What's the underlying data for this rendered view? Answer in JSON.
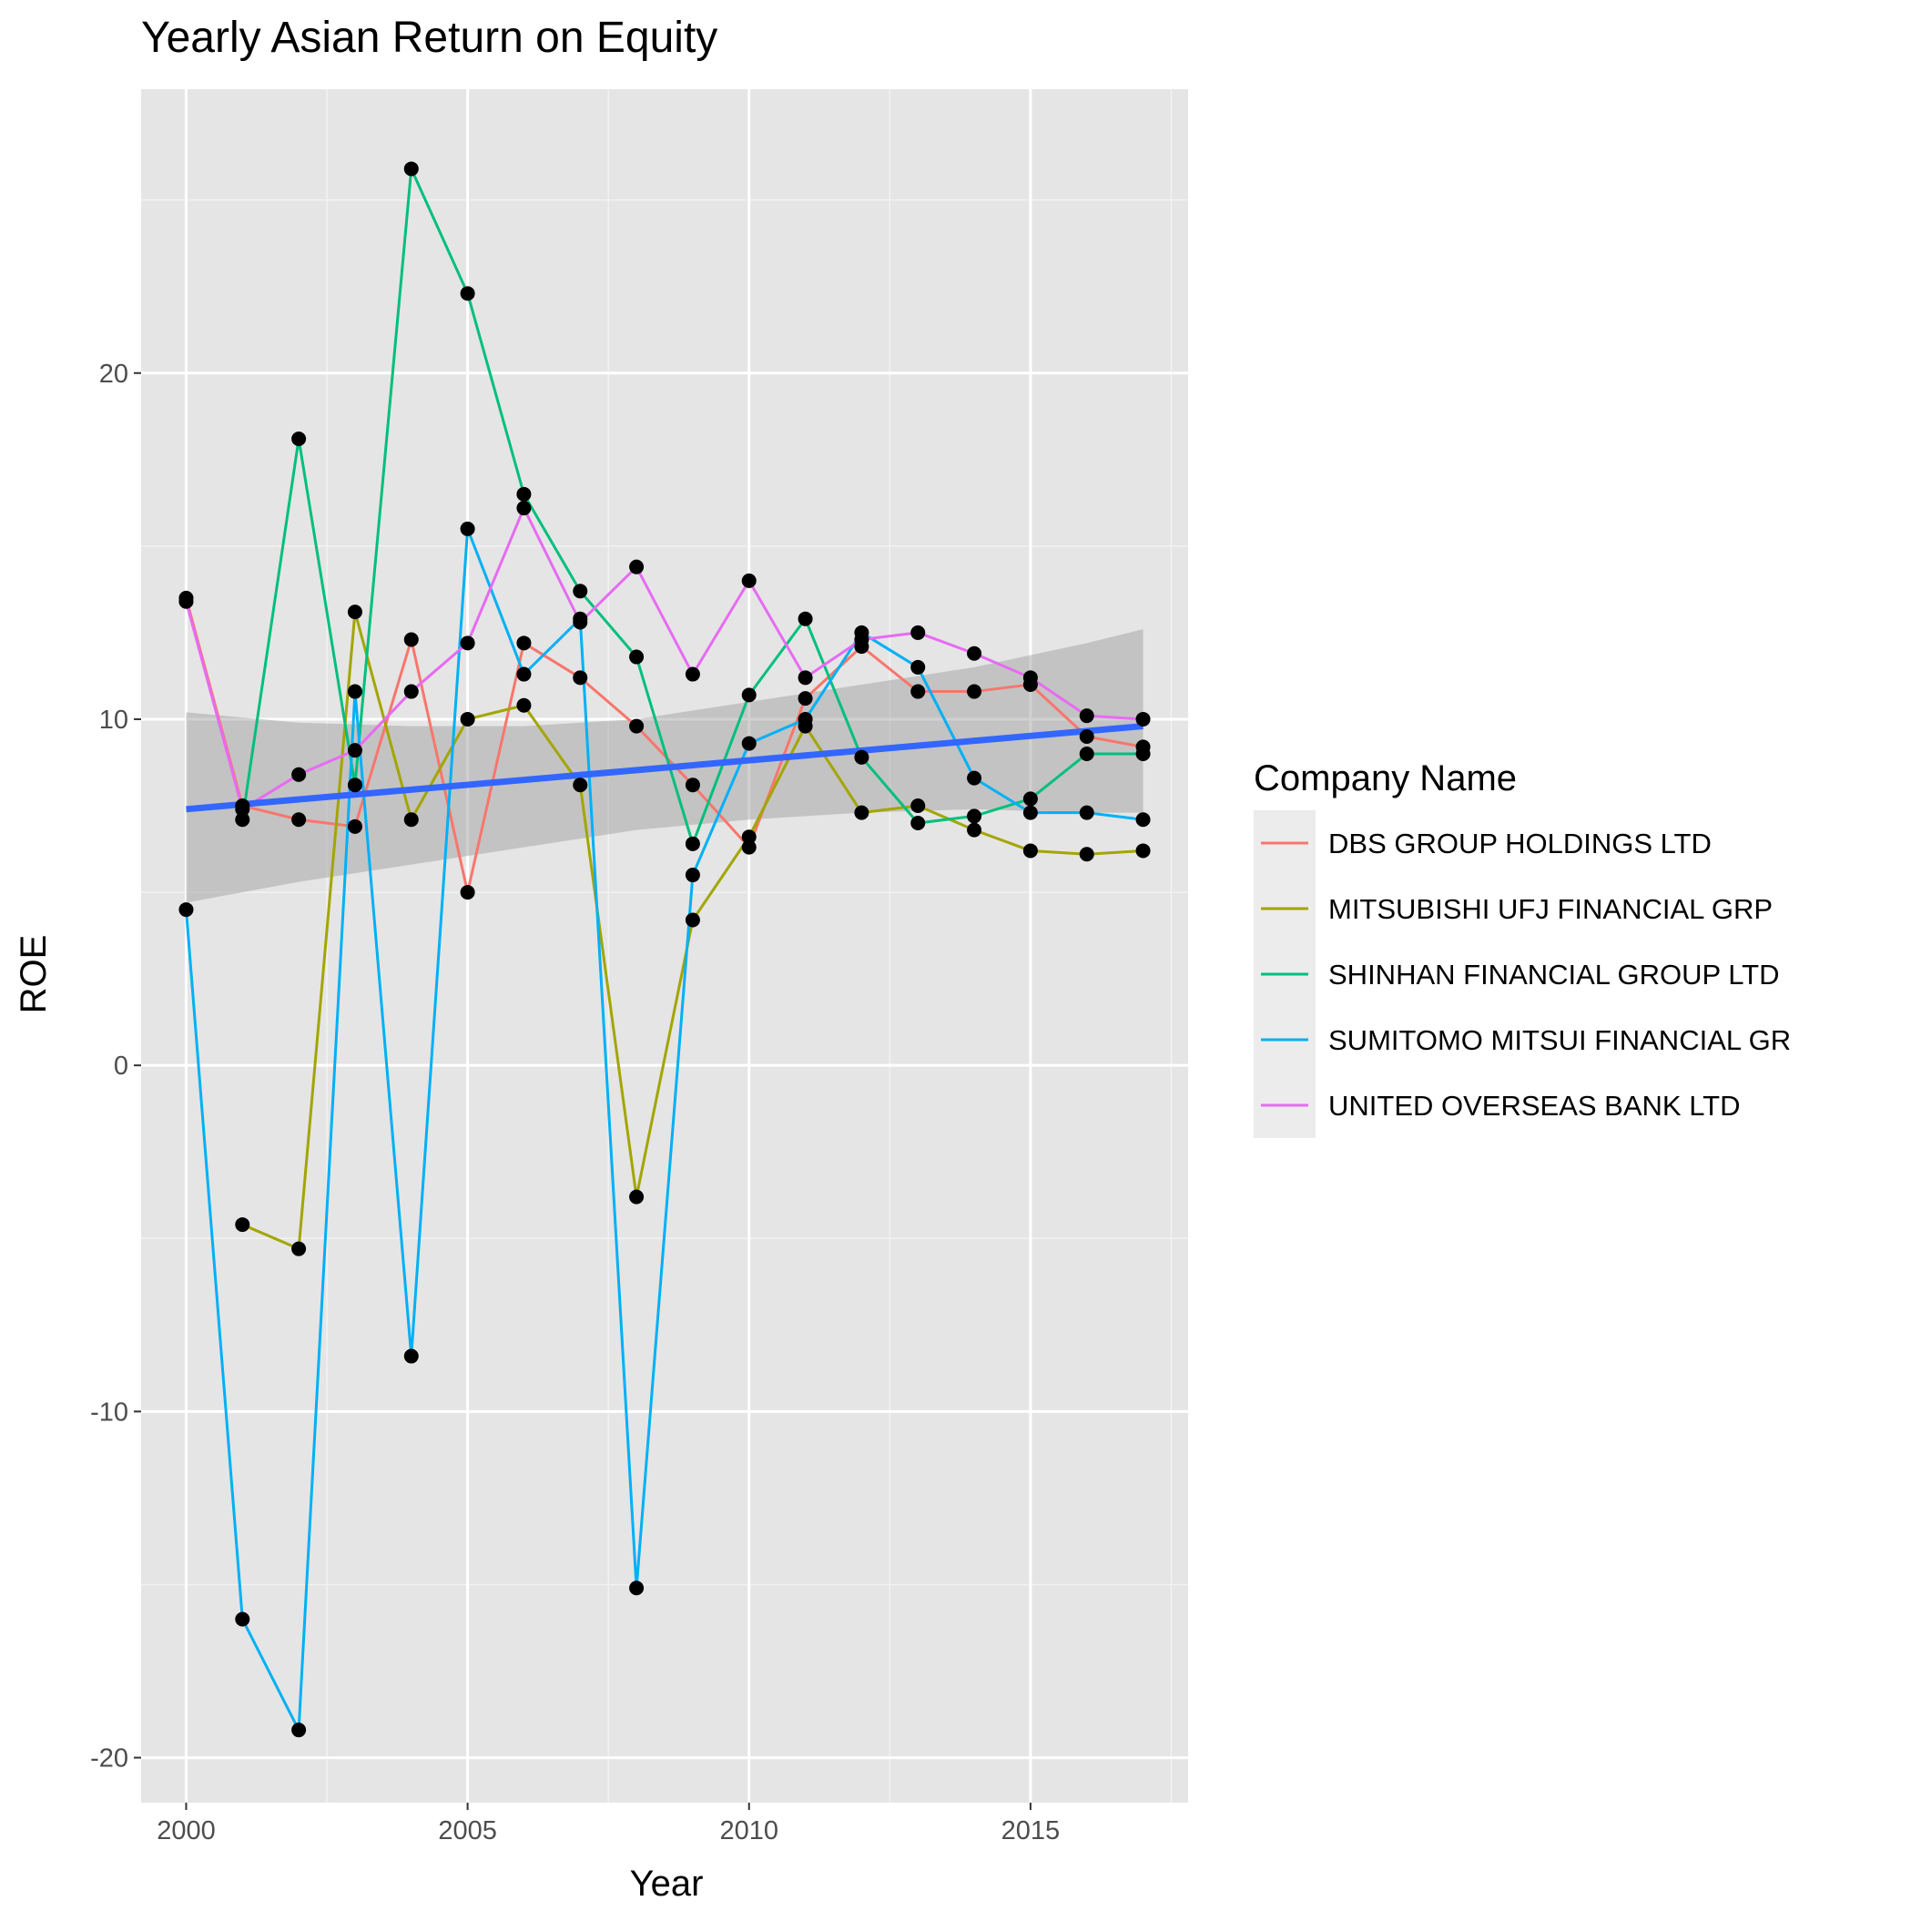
{
  "chart_data": {
    "type": "line",
    "title": "Yearly Asian Return on Equity",
    "xlabel": "Year",
    "ylabel": "ROE",
    "xlim": [
      1999.2,
      2017.8
    ],
    "ylim": [
      -21.3,
      28.2
    ],
    "x_ticks": [
      2000,
      2005,
      2010,
      2015
    ],
    "y_ticks": [
      -20,
      -10,
      0,
      10,
      20
    ],
    "grid": true,
    "legend": {
      "title": "Company Name",
      "position": "right"
    },
    "x": [
      2000,
      2001,
      2002,
      2003,
      2004,
      2005,
      2006,
      2007,
      2008,
      2009,
      2010,
      2011,
      2012,
      2013,
      2014,
      2015,
      2016,
      2017
    ],
    "series": [
      {
        "name": "DBS GROUP HOLDINGS LTD",
        "color": "#F8766D",
        "values": [
          13.5,
          7.5,
          7.1,
          6.9,
          12.3,
          5.0,
          12.2,
          11.2,
          9.8,
          8.1,
          6.3,
          10.6,
          12.1,
          10.8,
          10.8,
          11.0,
          9.5,
          9.2
        ]
      },
      {
        "name": "MITSUBISHI UFJ FINANCIAL GRP",
        "color": "#A3A500",
        "values": [
          null,
          -4.6,
          -5.3,
          13.1,
          7.1,
          10.0,
          10.4,
          8.1,
          -3.8,
          4.2,
          6.6,
          9.8,
          7.3,
          7.5,
          6.8,
          6.2,
          6.1,
          6.2
        ]
      },
      {
        "name": "SHINHAN FINANCIAL GROUP LTD",
        "color": "#00BF7D",
        "values": [
          null,
          7.1,
          18.1,
          8.1,
          25.9,
          22.3,
          16.5,
          13.7,
          11.8,
          6.4,
          10.7,
          12.9,
          8.9,
          7.0,
          7.2,
          7.7,
          9.0,
          9.0
        ]
      },
      {
        "name": "SUMITOMO MITSUI FINANCIAL GR",
        "color": "#00B0F6",
        "values": [
          4.5,
          -16.0,
          -19.2,
          10.8,
          -8.4,
          15.5,
          11.3,
          12.9,
          -15.1,
          5.5,
          9.3,
          10.0,
          12.5,
          11.5,
          8.3,
          7.3,
          7.3,
          7.1
        ]
      },
      {
        "name": "UNITED OVERSEAS BANK LTD",
        "color": "#E76BF3",
        "values": [
          13.4,
          7.4,
          8.4,
          9.1,
          10.8,
          12.2,
          16.1,
          12.8,
          14.4,
          11.3,
          14.0,
          11.2,
          12.3,
          12.5,
          11.9,
          11.2,
          10.1,
          10.0
        ]
      }
    ],
    "trend": {
      "color": "#3366FF",
      "x": [
        2000,
        2017
      ],
      "y": [
        7.4,
        9.8
      ],
      "band_x": [
        2000,
        2002,
        2004,
        2006,
        2008,
        2010,
        2012,
        2014,
        2016,
        2017
      ],
      "band_upper": [
        10.2,
        9.9,
        9.8,
        9.8,
        10.0,
        10.5,
        11.0,
        11.5,
        12.2,
        12.6
      ],
      "band_lower": [
        4.7,
        5.3,
        5.8,
        6.3,
        6.8,
        7.1,
        7.3,
        7.4,
        7.3,
        7.3
      ]
    }
  }
}
